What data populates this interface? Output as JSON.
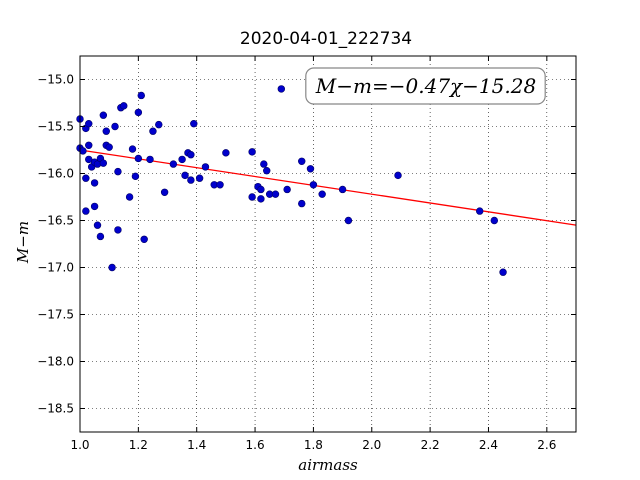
{
  "chart_data": {
    "type": "scatter",
    "title": "2020-04-01_222734",
    "xlabel": "airmass",
    "ylabel": "M−m",
    "xlim": [
      1.0,
      2.7
    ],
    "ylim": [
      -18.75,
      -14.75
    ],
    "y_inverted": true,
    "grid": true,
    "grid_style": "dotted",
    "x_ticks": [
      "1.0",
      "1.2",
      "1.4",
      "1.6",
      "1.8",
      "2.0",
      "2.2",
      "2.4",
      "2.6"
    ],
    "x_tick_values": [
      1.0,
      1.2,
      1.4,
      1.6,
      1.8,
      2.0,
      2.2,
      2.4,
      2.6
    ],
    "y_ticks": [
      "−15.0",
      "−15.5",
      "−16.0",
      "−16.5",
      "−17.0",
      "−17.5",
      "−18.0",
      "−18.5"
    ],
    "y_tick_values": [
      -15.0,
      -15.5,
      -16.0,
      -16.5,
      -17.0,
      -17.5,
      -18.0,
      -18.5
    ],
    "annotation": "M−m=−0.47χ−15.28",
    "annotation_placement": "top-right",
    "fit": {
      "slope": -0.47,
      "intercept": -15.28,
      "color": "#ff0000"
    },
    "point_color": "#0000cc",
    "points": [
      [
        1.0,
        -15.42
      ],
      [
        1.0,
        -15.73
      ],
      [
        1.01,
        -15.76
      ],
      [
        1.02,
        -15.52
      ],
      [
        1.03,
        -15.47
      ],
      [
        1.02,
        -16.05
      ],
      [
        1.02,
        -16.4
      ],
      [
        1.03,
        -15.7
      ],
      [
        1.03,
        -15.85
      ],
      [
        1.04,
        -15.93
      ],
      [
        1.05,
        -15.88
      ],
      [
        1.05,
        -16.1
      ],
      [
        1.05,
        -16.35
      ],
      [
        1.06,
        -16.55
      ],
      [
        1.06,
        -15.9
      ],
      [
        1.07,
        -15.84
      ],
      [
        1.07,
        -16.67
      ],
      [
        1.08,
        -15.89
      ],
      [
        1.08,
        -15.38
      ],
      [
        1.09,
        -15.55
      ],
      [
        1.09,
        -15.7
      ],
      [
        1.1,
        -15.72
      ],
      [
        1.11,
        -17.0
      ],
      [
        1.12,
        -15.5
      ],
      [
        1.13,
        -15.98
      ],
      [
        1.13,
        -16.6
      ],
      [
        1.14,
        -15.3
      ],
      [
        1.15,
        -15.28
      ],
      [
        1.17,
        -16.25
      ],
      [
        1.18,
        -15.74
      ],
      [
        1.19,
        -16.03
      ],
      [
        1.2,
        -15.84
      ],
      [
        1.2,
        -15.35
      ],
      [
        1.21,
        -15.17
      ],
      [
        1.22,
        -16.7
      ],
      [
        1.24,
        -15.85
      ],
      [
        1.25,
        -15.55
      ],
      [
        1.27,
        -15.48
      ],
      [
        1.29,
        -16.2
      ],
      [
        1.32,
        -15.9
      ],
      [
        1.35,
        -15.85
      ],
      [
        1.36,
        -16.02
      ],
      [
        1.37,
        -15.78
      ],
      [
        1.38,
        -15.8
      ],
      [
        1.38,
        -16.07
      ],
      [
        1.39,
        -15.47
      ],
      [
        1.41,
        -16.05
      ],
      [
        1.43,
        -15.93
      ],
      [
        1.46,
        -16.12
      ],
      [
        1.48,
        -16.12
      ],
      [
        1.5,
        -15.78
      ],
      [
        1.59,
        -15.77
      ],
      [
        1.59,
        -16.25
      ],
      [
        1.61,
        -16.14
      ],
      [
        1.62,
        -16.17
      ],
      [
        1.62,
        -16.27
      ],
      [
        1.63,
        -15.9
      ],
      [
        1.64,
        -15.97
      ],
      [
        1.65,
        -16.22
      ],
      [
        1.67,
        -16.22
      ],
      [
        1.69,
        -15.1
      ],
      [
        1.71,
        -16.17
      ],
      [
        1.76,
        -15.87
      ],
      [
        1.76,
        -16.32
      ],
      [
        1.79,
        -15.95
      ],
      [
        1.8,
        -16.12
      ],
      [
        1.83,
        -16.22
      ],
      [
        1.9,
        -16.17
      ],
      [
        1.92,
        -16.5
      ],
      [
        2.09,
        -16.02
      ],
      [
        2.37,
        -16.4
      ],
      [
        2.42,
        -16.5
      ],
      [
        2.45,
        -17.05
      ]
    ]
  }
}
